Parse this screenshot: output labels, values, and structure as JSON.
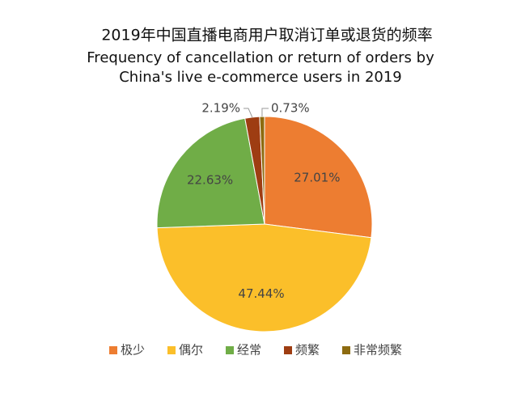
{
  "chart_data": {
    "type": "pie",
    "title": "2019年中国直播电商用户取消订单或退货的频率",
    "subtitle": [
      "Frequency of cancellation or return of orders by",
      "China's live e-commerce users in 2019"
    ],
    "categories": [
      "极少",
      "偶尔",
      "经常",
      "频繁",
      "非常频繁"
    ],
    "values": [
      27.01,
      47.44,
      22.63,
      2.19,
      0.73
    ],
    "value_labels": [
      "27.01%",
      "47.44%",
      "22.63%",
      "2.19%",
      "0.73%"
    ],
    "colors": [
      "#ed7d31",
      "#fbbf2a",
      "#70ad47",
      "#9e3d12",
      "#8d6b10"
    ],
    "legend": "bottom"
  }
}
